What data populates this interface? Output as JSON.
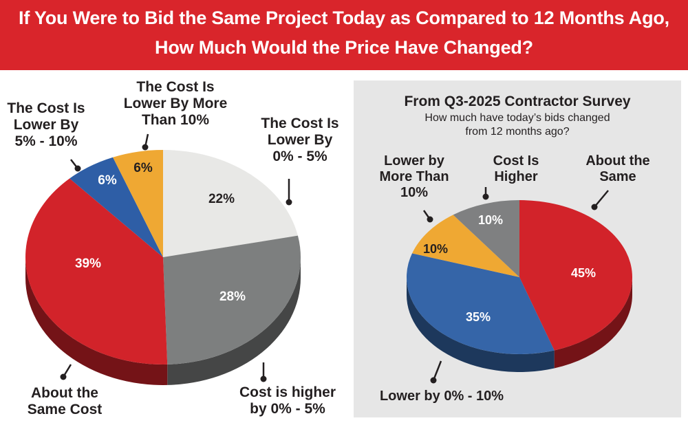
{
  "header": {
    "title_line_1": "If You Were to Bid the Same Project Today as Compared to 12 Months Ago,",
    "title_line_2": "How Much Would the Price Have Changed?"
  },
  "colors": {
    "banner": "#d9252b",
    "panel_bg": "#e6e6e6",
    "callout": "#231f20"
  },
  "chart_data": [
    {
      "type": "pie",
      "style": "3d",
      "title": "",
      "slices": [
        {
          "label": [
            "The Cost Is",
            "Lower By",
            "0% - 5%"
          ],
          "value": 22,
          "value_label": "22%",
          "color": "#e8e8e6"
        },
        {
          "label": [
            "Cost is higher",
            "by 0% - 5%"
          ],
          "value": 28,
          "value_label": "28%",
          "color": "#7d7f7f"
        },
        {
          "label": [
            "About the",
            "Same Cost"
          ],
          "value": 39,
          "value_label": "39%",
          "color": "#d2232a"
        },
        {
          "label": [
            "The Cost Is",
            "Lower By",
            "5% - 10%"
          ],
          "value": 6,
          "value_label": "6%",
          "color": "#2e5ea6"
        },
        {
          "label": [
            "The Cost Is",
            "Lower By More",
            "Than 10%"
          ],
          "value": 6,
          "value_label": "6%",
          "color": "#efa833"
        }
      ]
    },
    {
      "type": "pie",
      "style": "3d",
      "title": "From Q3-2025 Contractor Survey",
      "subtitle": [
        "How much have today’s bids changed",
        "from 12 months ago?"
      ],
      "slices": [
        {
          "label": [
            "About the",
            "Same"
          ],
          "value": 45,
          "value_label": "45%",
          "color": "#d2232a"
        },
        {
          "label": [
            "Lower by 0% - 10%"
          ],
          "value": 35,
          "value_label": "35%",
          "color": "#3565a8"
        },
        {
          "label": [
            "Lower by",
            "More Than",
            "10%"
          ],
          "value": 10,
          "value_label": "10%",
          "color": "#efa833"
        },
        {
          "label": [
            "Cost Is",
            "Higher"
          ],
          "value": 10,
          "value_label": "10%",
          "color": "#7f8081"
        }
      ]
    }
  ]
}
